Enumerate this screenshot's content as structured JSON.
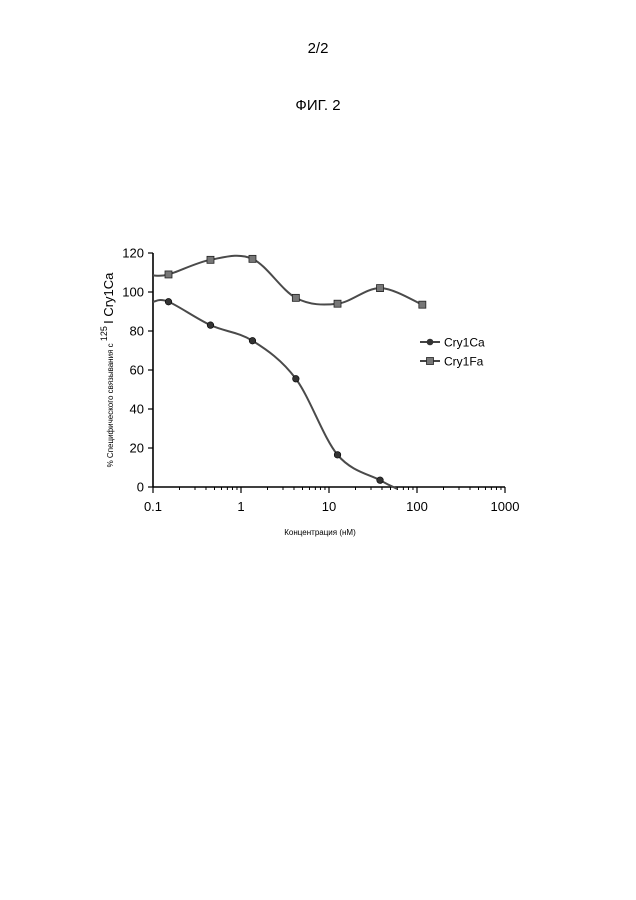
{
  "header": {
    "page_number": "2/2",
    "figure_label": "ФИГ. 2"
  },
  "chart_data": {
    "type": "line",
    "title": "",
    "xlabel": "Концентрация (нМ)",
    "ylabel_prefix": "% Специфического связывания с ",
    "ylabel_sup": "125",
    "ylabel_suffix": "I Cry1Ca",
    "xscale": "log",
    "xlim": [
      0.1,
      1000
    ],
    "ylim": [
      0,
      120
    ],
    "x_ticks": [
      "0.1",
      "1",
      "10",
      "100",
      "1000"
    ],
    "y_ticks": [
      "0",
      "20",
      "40",
      "60",
      "80",
      "100",
      "120"
    ],
    "grid": false,
    "legend_position": "right",
    "series": [
      {
        "name": "Cry1Ca",
        "marker": "circle",
        "x": [
          0.15,
          0.45,
          1.35,
          4.2,
          12.5,
          38
        ],
        "y": [
          95,
          83,
          75,
          55.5,
          16.5,
          3.5
        ],
        "curve_start": [
          0.1,
          95
        ],
        "curve_end": [
          60,
          -1
        ]
      },
      {
        "name": "Cry1Fa",
        "marker": "square",
        "x": [
          0.15,
          0.45,
          1.35,
          4.2,
          12.5,
          38,
          115
        ],
        "y": [
          109,
          116.5,
          117,
          97,
          94,
          102,
          93.5
        ],
        "curve_start": [
          0.1,
          108.5
        ]
      }
    ]
  }
}
